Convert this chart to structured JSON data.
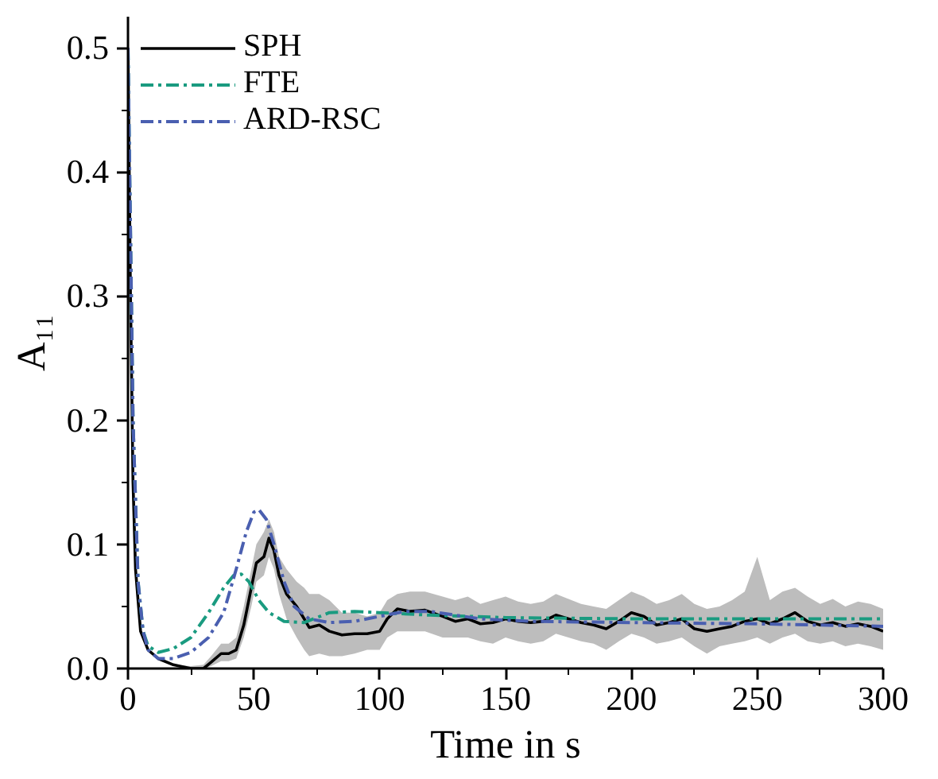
{
  "chart_data": {
    "type": "line",
    "xlabel": "Time in s",
    "ylabel": "A₁₁",
    "xlim": [
      0,
      300
    ],
    "ylim": [
      0,
      0.525
    ],
    "xticks": [
      0,
      50,
      100,
      150,
      200,
      250,
      300
    ],
    "yticks": [
      {
        "value": 0,
        "label": "0.0"
      },
      0.1,
      0.2,
      0.3,
      0.4,
      0.5
    ],
    "grid": false,
    "legend": "top left",
    "marker": "none",
    "series": [
      {
        "name": "SPH",
        "color": "#000000",
        "line_style": "solid",
        "x": [
          0,
          1,
          2,
          3,
          5,
          8,
          12,
          18,
          25,
          30,
          33,
          37,
          40,
          43,
          46,
          49,
          51,
          54,
          56,
          58,
          60,
          63,
          67,
          70,
          72,
          76,
          80,
          85,
          90,
          95,
          100,
          103,
          107,
          112,
          118,
          125,
          130,
          135,
          140,
          145,
          150,
          155,
          160,
          165,
          170,
          175,
          180,
          185,
          190,
          195,
          200,
          205,
          210,
          215,
          220,
          225,
          230,
          235,
          240,
          245,
          250,
          255,
          260,
          265,
          270,
          275,
          280,
          285,
          290,
          295,
          300
        ],
        "values": [
          0.5,
          0.3,
          0.15,
          0.08,
          0.03,
          0.015,
          0.008,
          0.003,
          0.0,
          0.0,
          0.005,
          0.012,
          0.012,
          0.015,
          0.035,
          0.065,
          0.085,
          0.09,
          0.105,
          0.095,
          0.075,
          0.06,
          0.05,
          0.04,
          0.033,
          0.035,
          0.03,
          0.027,
          0.028,
          0.028,
          0.03,
          0.04,
          0.048,
          0.046,
          0.047,
          0.042,
          0.038,
          0.04,
          0.036,
          0.037,
          0.04,
          0.038,
          0.037,
          0.038,
          0.043,
          0.04,
          0.037,
          0.035,
          0.032,
          0.038,
          0.045,
          0.042,
          0.035,
          0.037,
          0.04,
          0.032,
          0.03,
          0.032,
          0.034,
          0.038,
          0.04,
          0.036,
          0.04,
          0.045,
          0.038,
          0.035,
          0.037,
          0.034,
          0.036,
          0.034,
          0.03
        ],
        "lower": [
          0.5,
          0.3,
          0.15,
          0.08,
          0.03,
          0.015,
          0.008,
          0.003,
          0.0,
          0.0,
          0.002,
          0.006,
          0.006,
          0.008,
          0.025,
          0.05,
          0.07,
          0.075,
          0.09,
          0.08,
          0.06,
          0.04,
          0.025,
          0.015,
          0.01,
          0.012,
          0.01,
          0.01,
          0.012,
          0.015,
          0.015,
          0.025,
          0.03,
          0.03,
          0.03,
          0.025,
          0.025,
          0.025,
          0.022,
          0.02,
          0.025,
          0.022,
          0.02,
          0.022,
          0.028,
          0.025,
          0.022,
          0.02,
          0.015,
          0.022,
          0.028,
          0.025,
          0.02,
          0.022,
          0.025,
          0.018,
          0.012,
          0.018,
          0.02,
          0.022,
          0.025,
          0.02,
          0.025,
          0.028,
          0.022,
          0.02,
          0.022,
          0.018,
          0.02,
          0.018,
          0.015
        ],
        "upper": [
          0.5,
          0.3,
          0.15,
          0.08,
          0.03,
          0.015,
          0.008,
          0.003,
          0.002,
          0.003,
          0.01,
          0.02,
          0.02,
          0.025,
          0.05,
          0.08,
          0.1,
          0.11,
          0.12,
          0.11,
          0.09,
          0.08,
          0.07,
          0.065,
          0.06,
          0.06,
          0.055,
          0.045,
          0.045,
          0.042,
          0.045,
          0.055,
          0.06,
          0.062,
          0.062,
          0.058,
          0.055,
          0.058,
          0.052,
          0.055,
          0.058,
          0.054,
          0.052,
          0.054,
          0.06,
          0.056,
          0.052,
          0.05,
          0.048,
          0.055,
          0.062,
          0.058,
          0.052,
          0.055,
          0.06,
          0.052,
          0.048,
          0.05,
          0.055,
          0.062,
          0.09,
          0.055,
          0.062,
          0.065,
          0.058,
          0.052,
          0.056,
          0.05,
          0.054,
          0.052,
          0.048
        ]
      },
      {
        "name": "FTE",
        "color": "#1a9b80",
        "line_style": "dashed",
        "x": [
          0,
          2,
          4,
          6,
          8,
          12,
          18,
          25,
          32,
          38,
          42,
          45,
          48,
          52,
          56,
          62,
          70,
          80,
          90,
          100,
          120,
          150,
          200,
          250,
          300
        ],
        "values": [
          0.5,
          0.2,
          0.07,
          0.03,
          0.018,
          0.013,
          0.016,
          0.025,
          0.045,
          0.065,
          0.075,
          0.076,
          0.07,
          0.055,
          0.045,
          0.038,
          0.037,
          0.045,
          0.046,
          0.045,
          0.043,
          0.041,
          0.04,
          0.04,
          0.04
        ]
      },
      {
        "name": "ARD-RSC",
        "color": "#4a5fb0",
        "line_style": "dashed",
        "x": [
          0,
          2,
          4,
          6,
          8,
          12,
          18,
          25,
          32,
          38,
          43,
          47,
          50,
          52,
          55,
          58,
          62,
          66,
          72,
          80,
          90,
          100,
          110,
          120,
          140,
          160,
          200,
          250,
          300
        ],
        "values": [
          0.5,
          0.2,
          0.07,
          0.03,
          0.015,
          0.008,
          0.008,
          0.013,
          0.025,
          0.045,
          0.08,
          0.11,
          0.126,
          0.128,
          0.12,
          0.1,
          0.07,
          0.05,
          0.04,
          0.037,
          0.038,
          0.042,
          0.046,
          0.046,
          0.04,
          0.038,
          0.037,
          0.036,
          0.034
        ]
      }
    ]
  }
}
